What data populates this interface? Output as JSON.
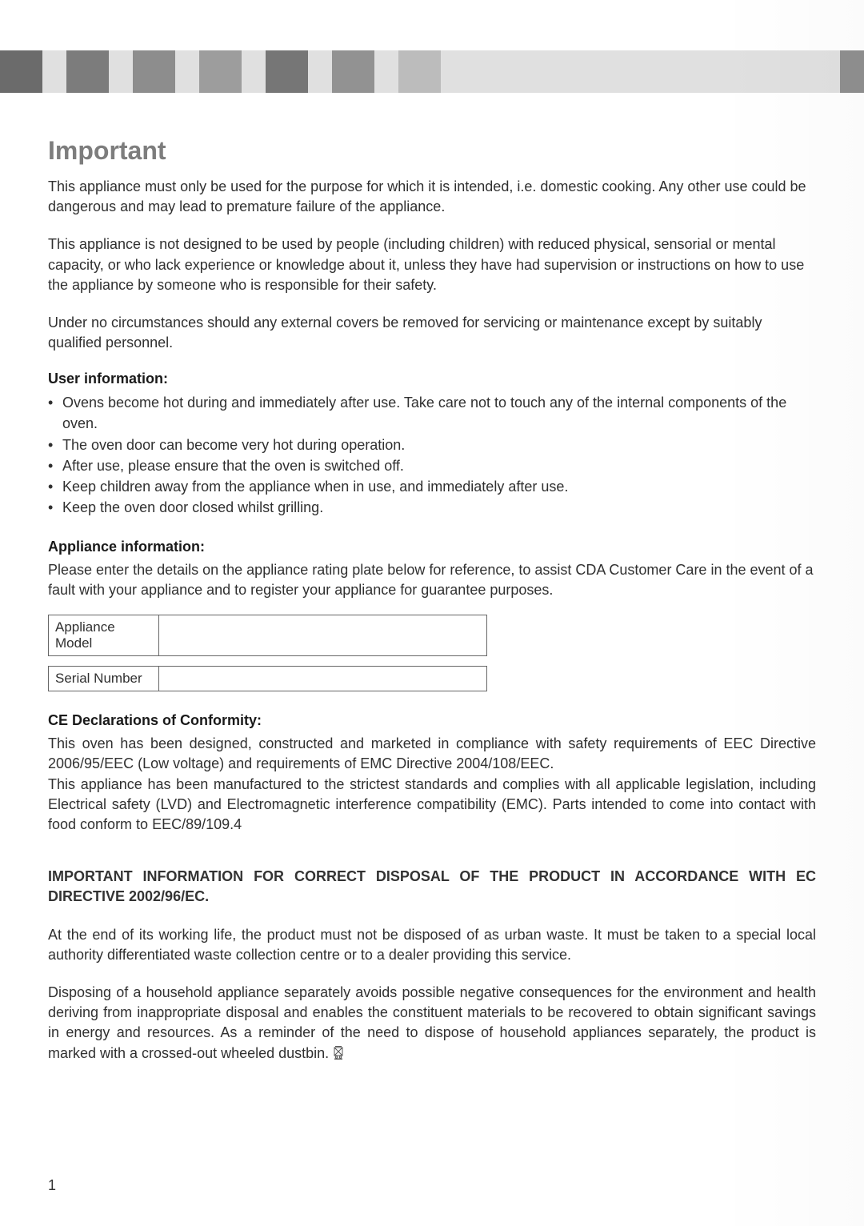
{
  "header": {
    "band_color": "#e0e0e0",
    "squares": [
      {
        "color": "#6b6b6b"
      },
      {
        "color": "#7c7c7c"
      },
      {
        "color": "#8d8d8d"
      },
      {
        "color": "#9d9d9d"
      },
      {
        "color": "#767676"
      },
      {
        "color": "#929292"
      },
      {
        "color": "#bcbcbc"
      }
    ],
    "right_accent_color": "#8f8f8f"
  },
  "title": "Important",
  "para1": "This appliance must only be used for the purpose for which it is intended, i.e. domestic cooking. Any other use could be dangerous and may lead to premature failure of the appliance.",
  "para2": "This appliance is not designed to be used by people (including children) with reduced physical, sensorial or mental capacity, or who lack experience or knowledge about it, unless they have had supervision or instructions on how to use the appliance by someone who is responsible for their safety.",
  "para3": "Under no circumstances should any external covers be removed for servicing or maintenance except by suitably qualified personnel.",
  "user_info": {
    "heading": "User information:",
    "items": [
      "Ovens become hot during and immediately after use.  Take care not to touch any of the internal components of the oven.",
      "The oven door can become very hot during operation.",
      "After use, please ensure that the oven is switched off.",
      "Keep children away from the appliance when in use, and immediately after use.",
      "Keep the oven door closed whilst grilling."
    ]
  },
  "appliance_info": {
    "heading": "Appliance information:",
    "intro": "Please enter the details on the appliance rating plate below for reference, to assist CDA Customer Care in the event of a fault with your appliance and to register your appliance for guarantee purposes.",
    "rows": [
      {
        "label": "Appliance Model",
        "value": ""
      },
      {
        "label": "Serial Number",
        "value": ""
      }
    ]
  },
  "ce": {
    "heading": "CE Declarations of Conformity:",
    "p1": "This oven has been designed, constructed and marketed in compliance with safety requirements of EEC Directive 2006/95/EEC (Low voltage) and requirements of EMC Directive 2004/108/EEC.",
    "p2": "This appliance has been manufactured to the strictest standards and complies with all applicable legislation, including Electrical safety (LVD) and Electromagnetic interference compatibility (EMC). Parts intended to come into contact with food conform to EEC/89/109.4"
  },
  "disposal": {
    "heading": "IMPORTANT INFORMATION FOR CORRECT DISPOSAL OF THE PRODUCT IN ACCORDANCE WITH EC DIRECTIVE 2002/96/EC.",
    "p1": "At the end of its working life, the product must not be disposed of as urban waste. It must be taken to a special local authority differentiated waste collection centre or to a dealer providing this service.",
    "p2": "Disposing of a household appliance separately avoids possible negative consequences for the environment and health deriving from inappropriate disposal and enables the constituent materials to be recovered to obtain significant savings in energy and resources. As a reminder of the need to dispose of household appliances separately, the product is marked with a crossed-out wheeled dustbin. "
  },
  "page_number": "1",
  "colors": {
    "title": "#7d7d7d",
    "text": "#303030",
    "border": "#666666",
    "background": "#ffffff"
  }
}
